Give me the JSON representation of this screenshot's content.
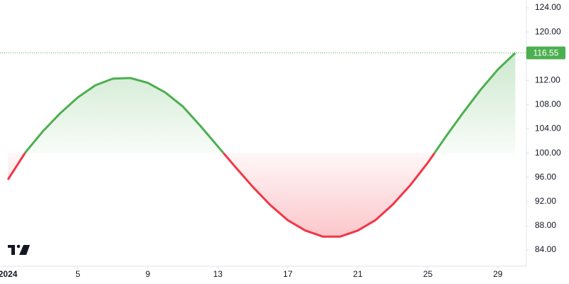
{
  "chart_data": {
    "type": "baseline",
    "baseline": 100,
    "x": [
      1,
      2,
      3,
      4,
      5,
      6,
      7,
      8,
      9,
      10,
      11,
      12,
      13,
      14,
      15,
      16,
      17,
      18,
      19,
      20,
      21,
      22,
      23,
      24,
      25,
      26,
      27,
      28,
      29,
      30
    ],
    "series": [
      {
        "up_color": "#4caf50",
        "down_color": "#f23645",
        "values": [
          95.6,
          100.1,
          103.6,
          106.6,
          109.2,
          111.2,
          112.3,
          112.4,
          111.6,
          110.0,
          107.7,
          104.5,
          101.1,
          97.7,
          94.4,
          91.4,
          88.9,
          87.2,
          86.2,
          86.2,
          87.2,
          88.9,
          91.5,
          94.7,
          98.4,
          102.6,
          106.6,
          110.4,
          113.8,
          116.55
        ]
      }
    ],
    "xlim": [
      0.55,
      30.63
    ],
    "xticks": [
      {
        "value": 1,
        "label": "2024"
      },
      5,
      9,
      13,
      17,
      21,
      25,
      29
    ],
    "ylim": [
      81.65,
      125.29
    ],
    "yticks": [
      {
        "value": 84,
        "label": "84.00"
      },
      {
        "value": 88,
        "label": "88.00"
      },
      {
        "value": 92,
        "label": "92.00"
      },
      {
        "value": 96,
        "label": "96.00"
      },
      {
        "value": 100,
        "label": "100.00"
      },
      {
        "value": 104,
        "label": "104.00"
      },
      {
        "value": 108,
        "label": "108.00"
      },
      {
        "value": 112,
        "label": "112.00"
      },
      {
        "value": 116,
        "label": "116.00"
      },
      {
        "value": 120,
        "label": "120.00"
      },
      {
        "value": 124,
        "label": "124.00"
      }
    ],
    "last_price_line": true
  }
}
